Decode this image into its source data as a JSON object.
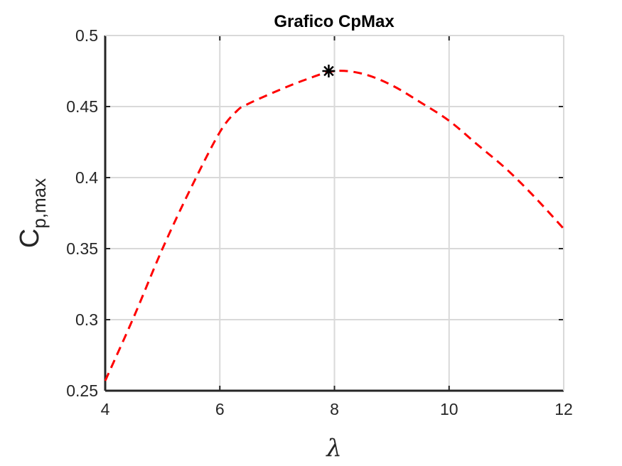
{
  "chart_data": {
    "type": "line",
    "title": "Grafico CpMax",
    "xlabel": "λ",
    "ylabel": "C",
    "ylabel_subscript": "p,max",
    "xlim": [
      4,
      12
    ],
    "ylim": [
      0.25,
      0.5
    ],
    "xticks": [
      "4",
      "6",
      "8",
      "10",
      "12"
    ],
    "yticks": [
      "0.25",
      "0.3",
      "0.35",
      "0.4",
      "0.45",
      "0.5"
    ],
    "grid": true,
    "series": [
      {
        "style": "dashed",
        "color": "#ff0000",
        "x": [
          4.0,
          4.5,
          5.0,
          5.5,
          6.0,
          6.3,
          6.5,
          7.0,
          7.5,
          8.0,
          8.5,
          9.0,
          9.5,
          10.0,
          10.5,
          11.0,
          11.5,
          12.0
        ],
        "y": [
          0.257,
          0.302,
          0.35,
          0.393,
          0.432,
          0.447,
          0.452,
          0.461,
          0.469,
          0.475,
          0.473,
          0.465,
          0.453,
          0.44,
          0.423,
          0.406,
          0.386,
          0.364
        ]
      }
    ],
    "marker": {
      "x": 7.9,
      "y": 0.475,
      "symbol": "asterisk",
      "color": "#000000"
    }
  }
}
